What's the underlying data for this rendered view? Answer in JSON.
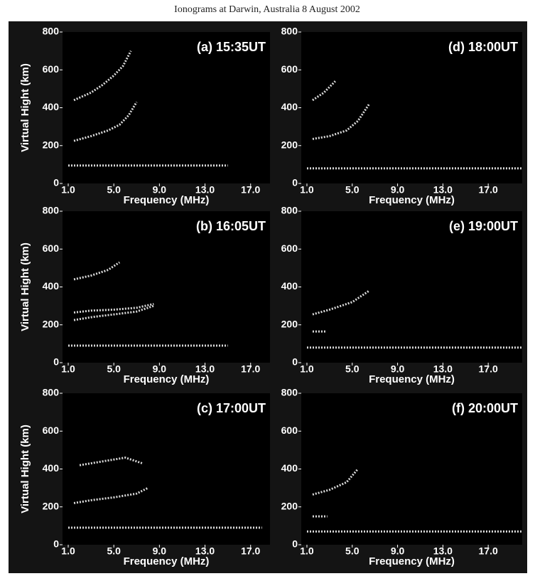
{
  "figure": {
    "title": "Ionograms at Darwin, Australia   8 August 2002"
  },
  "chart_data": [
    {
      "type": "line",
      "title": "(a) 15:35UT",
      "xlabel": "Frequency (MHz)",
      "ylabel": "Virtual Hight (km)",
      "xlim": [
        0.5,
        18.7
      ],
      "ylim": [
        0,
        800
      ],
      "xticks": [
        {
          "value": 1,
          "label": "1.0"
        },
        {
          "value": 5,
          "label": "5.0"
        },
        {
          "value": 9,
          "label": "9.0"
        },
        {
          "value": 13,
          "label": "13.0"
        },
        {
          "value": 17,
          "label": "17.0"
        }
      ],
      "yticks": [
        0,
        200,
        400,
        600,
        800
      ],
      "series": [
        {
          "color": "#ffffff",
          "x": [
            1.5,
            3,
            4.5,
            5.5,
            6.3,
            7
          ],
          "values": [
            225,
            250,
            280,
            310,
            360,
            430
          ]
        },
        {
          "color": "#ffffff",
          "x": [
            1.5,
            3,
            4,
            5,
            5.8,
            6.5
          ],
          "values": [
            440,
            480,
            520,
            570,
            620,
            700
          ]
        },
        {
          "color": "#ffffff",
          "x": [
            1,
            15
          ],
          "values": [
            95,
            95
          ]
        }
      ]
    },
    {
      "type": "line",
      "title": "(b) 16:05UT",
      "xlabel": "Frequency (MHz)",
      "ylabel": "Virtual Hight (km)",
      "xlim": [
        0.5,
        18.7
      ],
      "ylim": [
        0,
        800
      ],
      "xticks": [
        {
          "value": 1,
          "label": "1.0"
        },
        {
          "value": 5,
          "label": "5.0"
        },
        {
          "value": 9,
          "label": "9.0"
        },
        {
          "value": 13,
          "label": "13.0"
        },
        {
          "value": 17,
          "label": "17.0"
        }
      ],
      "yticks": [
        0,
        200,
        400,
        600,
        800
      ],
      "series": [
        {
          "color": "#ffffff",
          "x": [
            1.5,
            3,
            5,
            7,
            8.5
          ],
          "values": [
            225,
            240,
            255,
            270,
            300
          ]
        },
        {
          "color": "#ffffff",
          "x": [
            1.5,
            3,
            5,
            7,
            8.5
          ],
          "values": [
            265,
            275,
            280,
            290,
            310
          ]
        },
        {
          "color": "#ffffff",
          "x": [
            1.5,
            3,
            4.5,
            5.5
          ],
          "values": [
            440,
            460,
            490,
            530
          ]
        },
        {
          "color": "#ffffff",
          "x": [
            1,
            15
          ],
          "values": [
            90,
            90
          ]
        }
      ]
    },
    {
      "type": "line",
      "title": "(c) 17:00UT",
      "xlabel": "Frequency (MHz)",
      "ylabel": "Virtual Hight (km)",
      "xlim": [
        0.5,
        18.7
      ],
      "ylim": [
        0,
        800
      ],
      "xticks": [
        {
          "value": 1,
          "label": "1.0"
        },
        {
          "value": 5,
          "label": "5.0"
        },
        {
          "value": 9,
          "label": "9.0"
        },
        {
          "value": 13,
          "label": "13.0"
        },
        {
          "value": 17,
          "label": "17.0"
        }
      ],
      "yticks": [
        0,
        200,
        400,
        600,
        800
      ],
      "series": [
        {
          "color": "#ffffff",
          "x": [
            1.5,
            3,
            5,
            7,
            8
          ],
          "values": [
            220,
            235,
            250,
            270,
            300
          ]
        },
        {
          "color": "#ffffff",
          "x": [
            2,
            4,
            6,
            7.5
          ],
          "values": [
            420,
            440,
            460,
            430
          ]
        },
        {
          "color": "#ffffff",
          "x": [
            1,
            18
          ],
          "values": [
            90,
            90
          ]
        }
      ]
    },
    {
      "type": "line",
      "title": "(d) 18:00UT",
      "xlabel": "Frequency (MHz)",
      "xlim": [
        0.5,
        20
      ],
      "ylim": [
        0,
        800
      ],
      "xticks": [
        {
          "value": 1,
          "label": "1.0"
        },
        {
          "value": 5,
          "label": "5.0"
        },
        {
          "value": 9,
          "label": "9.0"
        },
        {
          "value": 13,
          "label": "13.0"
        },
        {
          "value": 17,
          "label": "17.0"
        }
      ],
      "yticks": [
        0,
        200,
        400,
        600,
        800
      ],
      "series": [
        {
          "color": "#ffffff",
          "x": [
            1.5,
            3,
            4.5,
            5.5,
            6.5
          ],
          "values": [
            235,
            250,
            280,
            330,
            420
          ]
        },
        {
          "color": "#ffffff",
          "x": [
            1.5,
            2.5,
            3.5
          ],
          "values": [
            440,
            480,
            540
          ]
        },
        {
          "color": "#ffffff",
          "x": [
            1,
            20
          ],
          "values": [
            80,
            80
          ]
        }
      ]
    },
    {
      "type": "line",
      "title": "(e) 19:00UT",
      "xlabel": "Frequency (MHz)",
      "xlim": [
        0.5,
        20
      ],
      "ylim": [
        0,
        800
      ],
      "xticks": [
        {
          "value": 1,
          "label": "1.0"
        },
        {
          "value": 5,
          "label": "5.0"
        },
        {
          "value": 9,
          "label": "9.0"
        },
        {
          "value": 13,
          "label": "13.0"
        },
        {
          "value": 17,
          "label": "17.0"
        }
      ],
      "yticks": [
        0,
        200,
        400,
        600,
        800
      ],
      "series": [
        {
          "color": "#ffffff",
          "x": [
            1.5,
            3,
            5,
            6.5
          ],
          "values": [
            255,
            280,
            320,
            380
          ]
        },
        {
          "color": "#ffffff",
          "x": [
            1.5,
            2.7
          ],
          "values": [
            165,
            165
          ]
        },
        {
          "color": "#ffffff",
          "x": [
            1,
            20
          ],
          "values": [
            80,
            80
          ]
        }
      ]
    },
    {
      "type": "line",
      "title": "(f) 20:00UT",
      "xlabel": "Frequency (MHz)",
      "xlim": [
        0.5,
        20
      ],
      "ylim": [
        0,
        800
      ],
      "xticks": [
        {
          "value": 1,
          "label": "1.0"
        },
        {
          "value": 5,
          "label": "5.0"
        },
        {
          "value": 9,
          "label": "9.0"
        },
        {
          "value": 13,
          "label": "13.0"
        },
        {
          "value": 17,
          "label": "17.0"
        }
      ],
      "yticks": [
        0,
        200,
        400,
        600,
        800
      ],
      "series": [
        {
          "color": "#ffffff",
          "x": [
            1.5,
            3,
            4.5,
            5.5
          ],
          "values": [
            265,
            290,
            330,
            400
          ]
        },
        {
          "color": "#ffffff",
          "x": [
            1.5,
            2.8
          ],
          "values": [
            150,
            150
          ]
        },
        {
          "color": "#ffffff",
          "x": [
            1,
            20
          ],
          "values": [
            70,
            70
          ]
        }
      ]
    }
  ]
}
